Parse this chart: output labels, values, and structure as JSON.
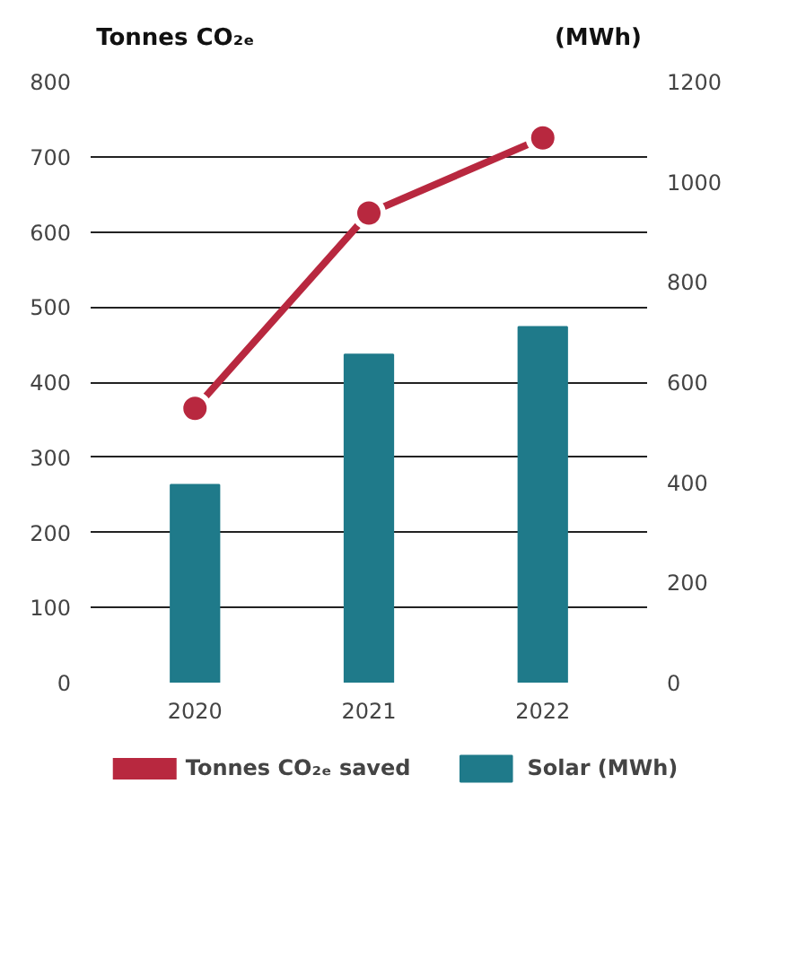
{
  "chart_data": {
    "type": "bar",
    "ylabel": "Tonnes CO₂ₑ",
    "y2label": "(MWh)",
    "categories": [
      "2020",
      "2021",
      "2022"
    ],
    "series": [
      {
        "name": "Tonnes CO₂ₑ saved",
        "type": "line",
        "color": "#b8283f",
        "values": [
          365,
          625,
          725
        ],
        "marker": "circle"
      },
      {
        "name": "Solar (MWh)",
        "axis": "y2",
        "color": "#1f7a8a",
        "values": [
          395,
          655,
          710
        ]
      }
    ],
    "ylim": [
      0,
      800
    ],
    "yticks": [
      0,
      100,
      200,
      300,
      400,
      500,
      600,
      700,
      800
    ],
    "y2lim": [
      0,
      1200
    ],
    "y2ticks": [
      0,
      200,
      400,
      600,
      800,
      1000,
      1200
    ],
    "grid": "y",
    "legend": "bottom"
  }
}
